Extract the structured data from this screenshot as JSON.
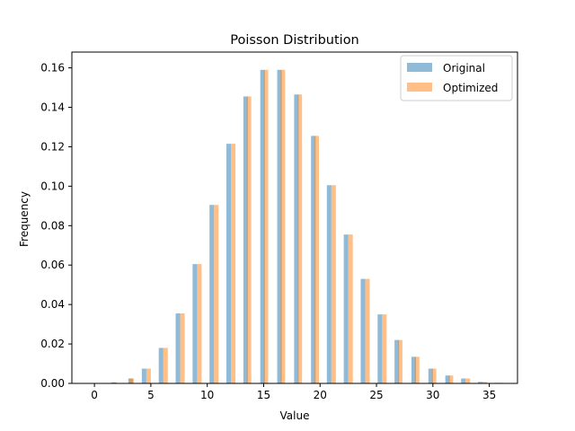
{
  "chart_data": {
    "type": "bar",
    "title": "Poisson Distribution",
    "xlabel": "Value",
    "ylabel": "Frequency",
    "xlim": [
      -2,
      37.5
    ],
    "ylim": [
      0,
      0.168
    ],
    "xticks": [
      0,
      5,
      10,
      15,
      20,
      25,
      30,
      35
    ],
    "yticks": [
      0.0,
      0.02,
      0.04,
      0.06,
      0.08,
      0.1,
      0.12,
      0.14,
      0.16
    ],
    "ytick_labels": [
      "0.00",
      "0.02",
      "0.04",
      "0.06",
      "0.08",
      "0.10",
      "0.12",
      "0.14",
      "0.16"
    ],
    "grid": false,
    "legend_position": "top-right",
    "series": [
      {
        "name": "Original",
        "color": "#1f77b4",
        "opacity": 0.5,
        "bins": [
          {
            "x0": 0.0,
            "x1": 0.4,
            "value": 0.0
          },
          {
            "x0": 1.5,
            "x1": 1.9,
            "value": 0.0005
          },
          {
            "x0": 3.0,
            "x1": 3.4,
            "value": 0.0025
          },
          {
            "x0": 4.2,
            "x1": 4.6,
            "value": 0.0075
          },
          {
            "x0": 5.7,
            "x1": 6.1,
            "value": 0.018
          },
          {
            "x0": 7.2,
            "x1": 7.6,
            "value": 0.0355
          },
          {
            "x0": 8.7,
            "x1": 9.1,
            "value": 0.0605
          },
          {
            "x0": 10.2,
            "x1": 10.6,
            "value": 0.0905
          },
          {
            "x0": 11.7,
            "x1": 12.1,
            "value": 0.1215
          },
          {
            "x0": 13.2,
            "x1": 13.6,
            "value": 0.1455
          },
          {
            "x0": 14.7,
            "x1": 15.1,
            "value": 0.159
          },
          {
            "x0": 16.2,
            "x1": 16.6,
            "value": 0.159
          },
          {
            "x0": 17.7,
            "x1": 18.1,
            "value": 0.1465
          },
          {
            "x0": 19.2,
            "x1": 19.6,
            "value": 0.1255
          },
          {
            "x0": 20.6,
            "x1": 21.0,
            "value": 0.1005
          },
          {
            "x0": 22.1,
            "x1": 22.5,
            "value": 0.0755
          },
          {
            "x0": 23.6,
            "x1": 24.0,
            "value": 0.053
          },
          {
            "x0": 25.1,
            "x1": 25.5,
            "value": 0.035
          },
          {
            "x0": 26.6,
            "x1": 27.0,
            "value": 0.022
          },
          {
            "x0": 28.1,
            "x1": 28.5,
            "value": 0.0135
          },
          {
            "x0": 29.6,
            "x1": 30.0,
            "value": 0.0075
          },
          {
            "x0": 31.1,
            "x1": 31.5,
            "value": 0.004
          },
          {
            "x0": 32.5,
            "x1": 32.9,
            "value": 0.0025
          },
          {
            "x0": 34.0,
            "x1": 34.4,
            "value": 0.0008
          },
          {
            "x0": 35.5,
            "x1": 35.9,
            "value": 0.0003
          }
        ]
      },
      {
        "name": "Optimized",
        "color": "#ff7f0e",
        "opacity": 0.5,
        "bins": [
          {
            "x0": 0.1,
            "x1": 0.5,
            "value": 0.0
          },
          {
            "x0": 1.6,
            "x1": 2.0,
            "value": 0.0005
          },
          {
            "x0": 3.1,
            "x1": 3.5,
            "value": 0.0025
          },
          {
            "x0": 4.6,
            "x1": 5.0,
            "value": 0.0075
          },
          {
            "x0": 6.1,
            "x1": 6.5,
            "value": 0.018
          },
          {
            "x0": 7.6,
            "x1": 8.0,
            "value": 0.0355
          },
          {
            "x0": 9.1,
            "x1": 9.5,
            "value": 0.0605
          },
          {
            "x0": 10.6,
            "x1": 11.0,
            "value": 0.0905
          },
          {
            "x0": 12.1,
            "x1": 12.5,
            "value": 0.1215
          },
          {
            "x0": 13.5,
            "x1": 13.9,
            "value": 0.1455
          },
          {
            "x0": 15.0,
            "x1": 15.4,
            "value": 0.159
          },
          {
            "x0": 16.5,
            "x1": 16.9,
            "value": 0.159
          },
          {
            "x0": 18.0,
            "x1": 18.4,
            "value": 0.1465
          },
          {
            "x0": 19.5,
            "x1": 19.9,
            "value": 0.1255
          },
          {
            "x0": 21.0,
            "x1": 21.4,
            "value": 0.1005
          },
          {
            "x0": 22.5,
            "x1": 22.9,
            "value": 0.0755
          },
          {
            "x0": 24.0,
            "x1": 24.4,
            "value": 0.053
          },
          {
            "x0": 25.5,
            "x1": 25.9,
            "value": 0.035
          },
          {
            "x0": 26.9,
            "x1": 27.3,
            "value": 0.022
          },
          {
            "x0": 28.4,
            "x1": 28.8,
            "value": 0.0135
          },
          {
            "x0": 29.9,
            "x1": 30.3,
            "value": 0.0075
          },
          {
            "x0": 31.4,
            "x1": 31.8,
            "value": 0.004
          },
          {
            "x0": 32.9,
            "x1": 33.3,
            "value": 0.0025
          },
          {
            "x0": 34.4,
            "x1": 34.8,
            "value": 0.0008
          },
          {
            "x0": 35.9,
            "x1": 36.3,
            "value": 0.0003
          }
        ]
      }
    ]
  }
}
